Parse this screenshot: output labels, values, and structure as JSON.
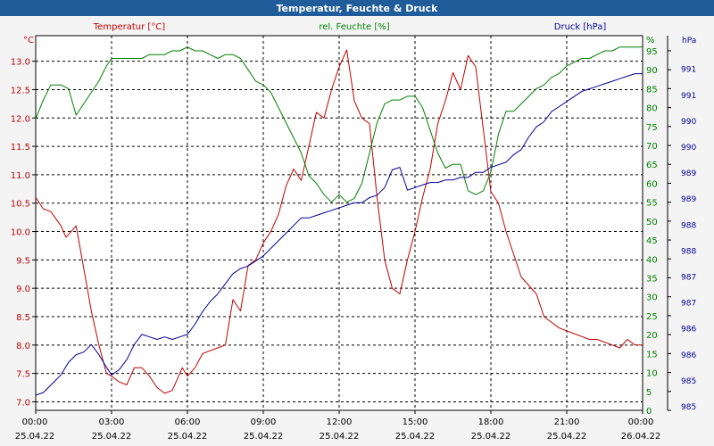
{
  "chart_data": {
    "type": "line",
    "title": "Temperatur, Feuchte & Druck",
    "x_ticks": [
      {
        "time": "00:00",
        "date": "25.04.22"
      },
      {
        "time": "03:00",
        "date": "25.04.22"
      },
      {
        "time": "06:00",
        "date": "25.04.22"
      },
      {
        "time": "09:00",
        "date": "25.04.22"
      },
      {
        "time": "12:00",
        "date": "25.04.22"
      },
      {
        "time": "15:00",
        "date": "25.04.22"
      },
      {
        "time": "18:00",
        "date": "25.04.22"
      },
      {
        "time": "21:00",
        "date": "25.04.22"
      },
      {
        "time": "00:00",
        "date": "26.04.22"
      }
    ],
    "xlim": [
      0,
      24
    ],
    "axes": {
      "temperature": {
        "title": "Temperatur [°C]",
        "unit": "°C",
        "color": "#c00000",
        "ylim": [
          6.85,
          13.45
        ],
        "ticks": [
          "7.0",
          "7.5",
          "8.0",
          "8.5",
          "9.0",
          "9.5",
          "10.0",
          "10.5",
          "11.0",
          "11.5",
          "12.0",
          "12.5",
          "13.0"
        ]
      },
      "humidity": {
        "title": "rel. Feuchte [%]",
        "unit": "%",
        "color": "#008000",
        "ylim": [
          0,
          99
        ],
        "ticks": [
          "0",
          "5",
          "10",
          "15",
          "20",
          "25",
          "30",
          "35",
          "40",
          "45",
          "50",
          "55",
          "60",
          "65",
          "70",
          "75",
          "80",
          "85",
          "90",
          "95"
        ]
      },
      "pressure": {
        "title": "Druck [hPa]",
        "unit": "hPa",
        "color": "#000099",
        "ylim": [
          984.8,
          992.2
        ],
        "ticks": [
          "985",
          "985",
          "986",
          "986",
          "987",
          "987",
          "988",
          "988",
          "989",
          "989",
          "990",
          "990",
          "991",
          "991"
        ]
      }
    },
    "series": [
      {
        "name": "Temperatur [°C]",
        "axis": "temperature",
        "color": "#c00000",
        "x": [
          0,
          0.3,
          0.6,
          1,
          1.2,
          1.6,
          2,
          2.2,
          2.5,
          2.8,
          3,
          3.3,
          3.6,
          3.9,
          4.2,
          4.5,
          4.8,
          5.1,
          5.4,
          5.8,
          6,
          6.3,
          6.6,
          6.9,
          7.2,
          7.5,
          7.8,
          8.1,
          8.4,
          8.7,
          9,
          9.3,
          9.6,
          9.9,
          10.2,
          10.5,
          10.8,
          11.1,
          11.4,
          11.7,
          12,
          12.3,
          12.6,
          12.9,
          13.2,
          13.5,
          13.8,
          14.1,
          14.4,
          14.7,
          15,
          15.3,
          15.6,
          15.9,
          16.2,
          16.5,
          16.8,
          17.1,
          17.4,
          17.7,
          18,
          18.3,
          18.6,
          18.9,
          19.2,
          19.5,
          19.8,
          20.1,
          20.4,
          20.7,
          21,
          21.3,
          21.6,
          21.9,
          22.2,
          22.5,
          22.8,
          23.1,
          23.4,
          23.7,
          24
        ],
        "y": [
          10.6,
          10.4,
          10.35,
          10.1,
          9.9,
          10.1,
          9.1,
          8.6,
          8.0,
          7.5,
          7.45,
          7.35,
          7.3,
          7.6,
          7.6,
          7.45,
          7.25,
          7.15,
          7.2,
          7.6,
          7.45,
          7.6,
          7.85,
          7.9,
          7.95,
          8.0,
          8.8,
          8.6,
          9.4,
          9.5,
          9.8,
          10.0,
          10.3,
          10.8,
          11.1,
          10.9,
          11.5,
          12.1,
          12.0,
          12.5,
          12.9,
          13.2,
          12.3,
          12.0,
          11.9,
          10.6,
          9.5,
          9.0,
          8.9,
          9.5,
          10.0,
          10.6,
          11.1,
          11.9,
          12.3,
          12.8,
          12.5,
          13.1,
          12.9,
          11.8,
          10.7,
          10.5,
          10.0,
          9.6,
          9.2,
          9.05,
          8.9,
          8.5,
          8.4,
          8.3,
          8.25,
          8.2,
          8.15,
          8.1,
          8.1,
          8.05,
          8.0,
          7.95,
          8.1,
          8.0,
          8.0
        ]
      },
      {
        "name": "rel. Feuchte [%]",
        "axis": "humidity",
        "color": "#008000",
        "x": [
          0,
          0.3,
          0.6,
          1,
          1.3,
          1.6,
          1.9,
          2.2,
          2.5,
          2.8,
          3,
          3.3,
          3.6,
          3.9,
          4.2,
          4.5,
          4.8,
          5.1,
          5.4,
          5.7,
          6,
          6.3,
          6.6,
          6.9,
          7.2,
          7.5,
          7.8,
          8.1,
          8.4,
          8.7,
          9,
          9.3,
          9.6,
          9.9,
          10.2,
          10.5,
          10.8,
          11.1,
          11.4,
          11.7,
          12,
          12.3,
          12.6,
          12.9,
          13.2,
          13.5,
          13.8,
          14.1,
          14.4,
          14.7,
          15,
          15.3,
          15.6,
          15.9,
          16.2,
          16.5,
          16.8,
          17.1,
          17.4,
          17.7,
          18,
          18.3,
          18.6,
          18.9,
          19.2,
          19.5,
          19.8,
          20.1,
          20.4,
          20.7,
          21,
          21.3,
          21.6,
          21.9,
          22.2,
          22.5,
          22.8,
          23.1,
          23.4,
          23.7,
          24
        ],
        "y": [
          77,
          82,
          86,
          86,
          85,
          78,
          81,
          84,
          87,
          91,
          93,
          93,
          93,
          93,
          93,
          94,
          94,
          94,
          95,
          95,
          96,
          95,
          95,
          94,
          93,
          94,
          94,
          93,
          90,
          87,
          86,
          84,
          80,
          76,
          72,
          68,
          62,
          60,
          57,
          55,
          57,
          55,
          56,
          60,
          68,
          76,
          81,
          82,
          82,
          83,
          83,
          80,
          74,
          68,
          64,
          65,
          65,
          58,
          57,
          58,
          63,
          73,
          79,
          79,
          81,
          83,
          85,
          86,
          88,
          89,
          91,
          92,
          93,
          93,
          94,
          95,
          95,
          96,
          96,
          96,
          96
        ]
      },
      {
        "name": "Druck [hPa]",
        "axis": "pressure",
        "color": "#000099",
        "x": [
          0,
          0.3,
          0.6,
          1,
          1.3,
          1.6,
          1.9,
          2.2,
          2.5,
          2.8,
          3,
          3.3,
          3.6,
          3.9,
          4.2,
          4.5,
          4.8,
          5.1,
          5.4,
          5.7,
          6,
          6.3,
          6.6,
          6.9,
          7.2,
          7.5,
          7.8,
          8.1,
          8.4,
          8.7,
          9,
          9.3,
          9.6,
          9.9,
          10.2,
          10.5,
          10.8,
          11.1,
          11.4,
          11.7,
          12,
          12.3,
          12.6,
          12.9,
          13.2,
          13.5,
          13.8,
          14.1,
          14.4,
          14.7,
          15,
          15.3,
          15.6,
          15.9,
          16.2,
          16.5,
          16.8,
          17.1,
          17.4,
          17.7,
          18,
          18.3,
          18.6,
          18.9,
          19.2,
          19.5,
          19.8,
          20.1,
          20.4,
          20.7,
          21,
          21.3,
          21.6,
          21.9,
          22.2,
          22.5,
          22.8,
          23.1,
          23.4,
          23.7,
          24
        ],
        "y": [
          985.1,
          985.15,
          985.3,
          985.5,
          985.75,
          985.9,
          985.95,
          986.1,
          985.9,
          985.65,
          985.5,
          985.6,
          985.8,
          986.1,
          986.3,
          986.25,
          986.2,
          986.25,
          986.2,
          986.25,
          986.3,
          986.5,
          986.75,
          986.95,
          987.1,
          987.3,
          987.5,
          987.6,
          987.65,
          987.75,
          987.85,
          988.0,
          988.15,
          988.3,
          988.45,
          988.6,
          988.6,
          988.65,
          988.7,
          988.75,
          988.8,
          988.85,
          988.9,
          988.9,
          989.0,
          989.05,
          989.2,
          989.55,
          989.6,
          989.15,
          989.2,
          989.25,
          989.3,
          989.3,
          989.35,
          989.35,
          989.4,
          989.4,
          989.5,
          989.5,
          989.6,
          989.65,
          989.7,
          989.85,
          989.95,
          990.2,
          990.4,
          990.5,
          990.7,
          990.8,
          990.9,
          991.0,
          991.1,
          991.15,
          991.2,
          991.25,
          991.3,
          991.35,
          991.4,
          991.45,
          991.45
        ]
      }
    ],
    "grid": true,
    "legend": "top"
  }
}
